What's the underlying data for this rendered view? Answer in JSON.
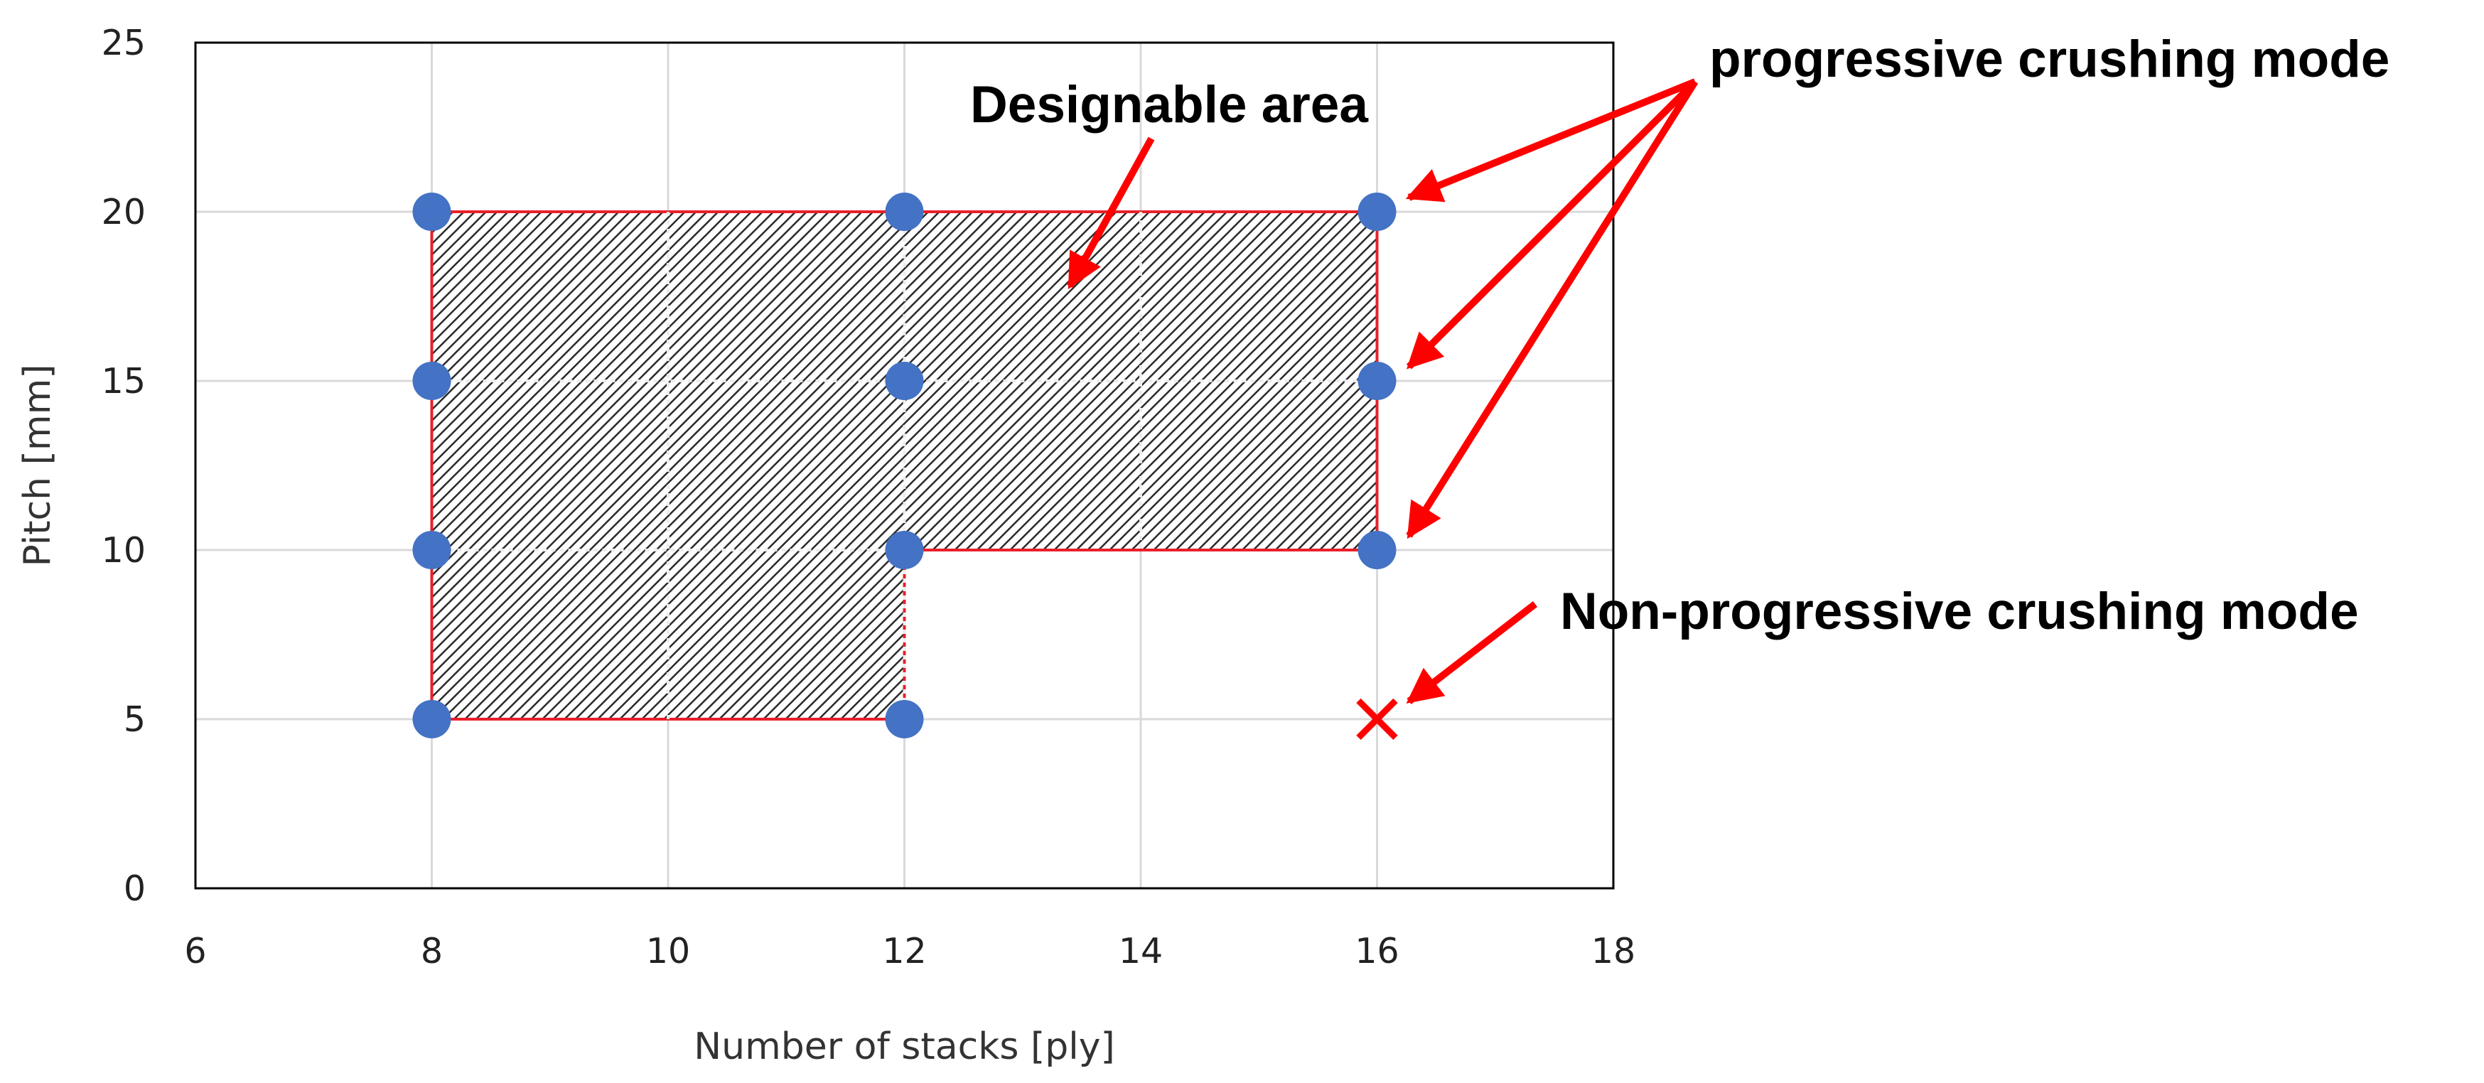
{
  "chart_data": {
    "type": "scatter",
    "title": "",
    "xlabel": "Number of stacks [ply]",
    "ylabel": "Pitch [mm]",
    "xlim": [
      6,
      18
    ],
    "ylim": [
      0,
      25
    ],
    "x_ticks": [
      "6",
      "8",
      "10",
      "12",
      "14",
      "16",
      "18"
    ],
    "y_ticks": [
      "0",
      "5",
      "10",
      "15",
      "20",
      "25"
    ],
    "grid": true,
    "series": [
      {
        "name": "progressive crushing mode",
        "marker": "circle",
        "color": "#4472C4",
        "points": [
          {
            "x": 8,
            "y": 20
          },
          {
            "x": 8,
            "y": 15
          },
          {
            "x": 8,
            "y": 10
          },
          {
            "x": 8,
            "y": 5
          },
          {
            "x": 12,
            "y": 20
          },
          {
            "x": 12,
            "y": 15
          },
          {
            "x": 12,
            "y": 10
          },
          {
            "x": 12,
            "y": 5
          },
          {
            "x": 16,
            "y": 20
          },
          {
            "x": 16,
            "y": 15
          },
          {
            "x": 16,
            "y": 10
          }
        ]
      },
      {
        "name": "Non-progressive crushing mode",
        "marker": "x",
        "color": "#FF0000",
        "points": [
          {
            "x": 16,
            "y": 5
          }
        ]
      }
    ],
    "region": {
      "label": "Designable area",
      "boundary": [
        {
          "x": 8,
          "y": 20
        },
        {
          "x": 16,
          "y": 20
        },
        {
          "x": 16,
          "y": 10
        },
        {
          "x": 12,
          "y": 10
        },
        {
          "x": 12,
          "y": 5
        },
        {
          "x": 8,
          "y": 5
        }
      ],
      "border_color": "#E8202A",
      "fill": "hatched"
    },
    "annotations": [
      {
        "text": "Designable area",
        "target": {
          "x": 13.4,
          "y": 17.8
        }
      },
      {
        "text": "progressive crushing mode",
        "targets": [
          {
            "x": 16,
            "y": 20
          },
          {
            "x": 16,
            "y": 15
          },
          {
            "x": 16,
            "y": 10
          }
        ]
      },
      {
        "text": "Non-progressive crushing mode",
        "targets": [
          {
            "x": 16,
            "y": 5
          }
        ]
      }
    ]
  }
}
